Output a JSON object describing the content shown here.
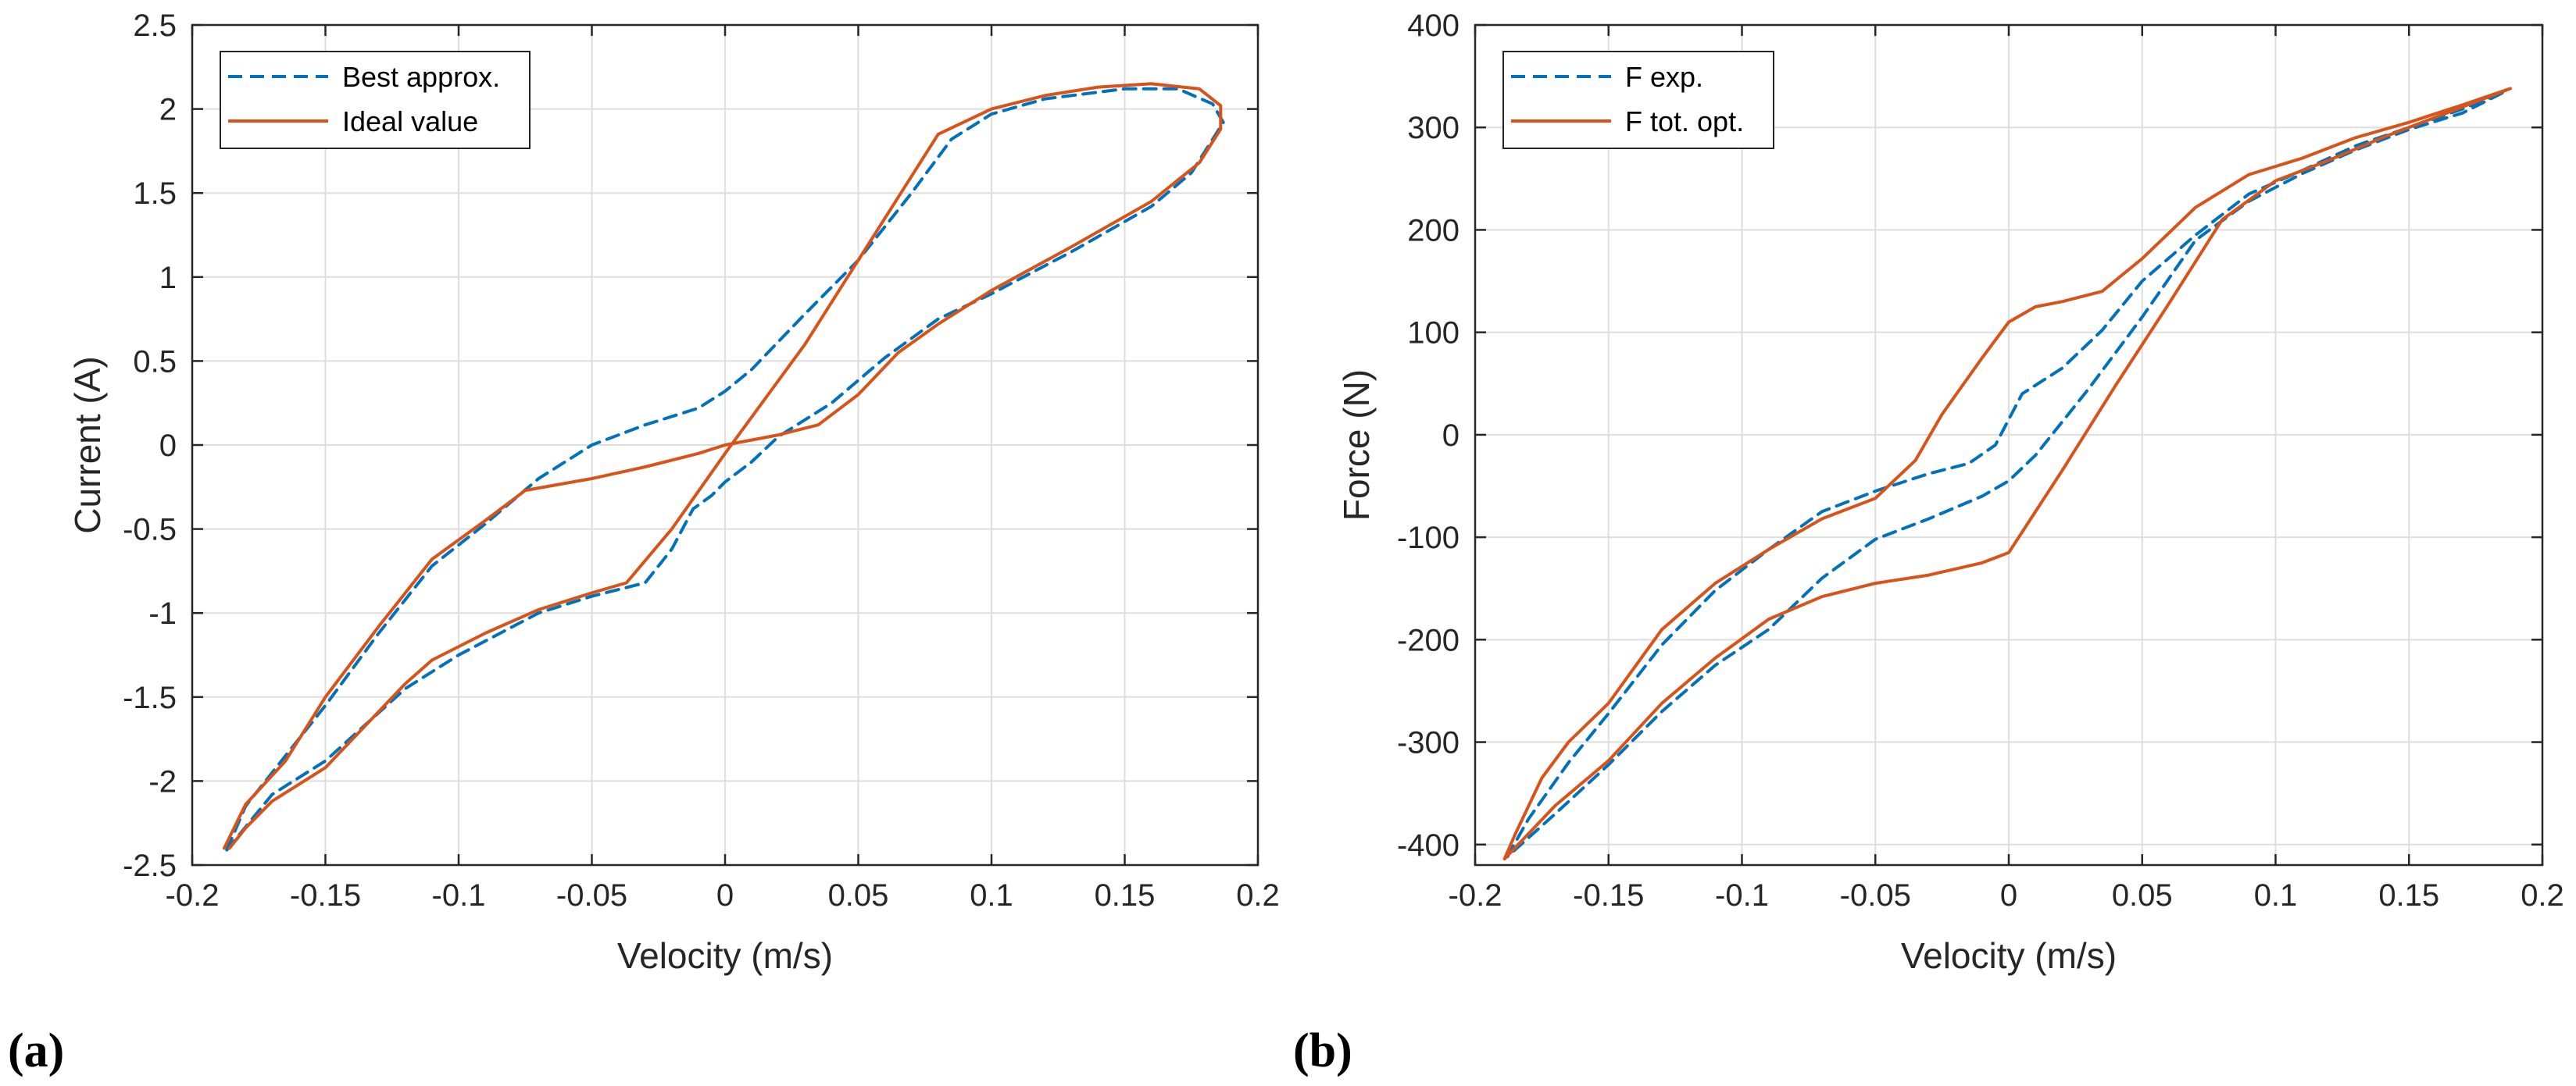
{
  "chart_data": [
    {
      "type": "line",
      "panel": "(a)",
      "xlabel": "Velocity (m/s)",
      "ylabel": "Current (A)",
      "xlim": [
        -0.2,
        0.2
      ],
      "ylim": [
        -2.5,
        2.5
      ],
      "grid": true,
      "legend_position": "top-left",
      "xticks": [
        -0.2,
        -0.15,
        -0.1,
        -0.05,
        0,
        0.05,
        0.1,
        0.15,
        0.2
      ],
      "xtick_labels": [
        "-0.2",
        "-0.15",
        "-0.1",
        "-0.05",
        "0",
        "0.05",
        "0.1",
        "0.15",
        "0.2"
      ],
      "yticks": [
        -2.5,
        -2,
        -1.5,
        -1,
        -0.5,
        0,
        0.5,
        1,
        1.5,
        2,
        2.5
      ],
      "ytick_labels": [
        "-2.5",
        "-2",
        "-1.5",
        "-1",
        "-0.5",
        "0",
        "0.5",
        "1",
        "1.5",
        "2",
        "2.5"
      ],
      "series": [
        {
          "name": "Best approx.",
          "style": "dashed",
          "color": "#0072BD",
          "points": [
            [
              -0.187,
              -2.41
            ],
            [
              -0.18,
              -2.15
            ],
            [
              -0.17,
              -1.95
            ],
            [
              -0.15,
              -1.55
            ],
            [
              -0.13,
              -1.12
            ],
            [
              -0.11,
              -0.72
            ],
            [
              -0.09,
              -0.47
            ],
            [
              -0.07,
              -0.2
            ],
            [
              -0.05,
              0.0
            ],
            [
              -0.03,
              0.12
            ],
            [
              -0.01,
              0.22
            ],
            [
              0.0,
              0.32
            ],
            [
              0.01,
              0.45
            ],
            [
              0.03,
              0.78
            ],
            [
              0.05,
              1.1
            ],
            [
              0.07,
              1.5
            ],
            [
              0.085,
              1.82
            ],
            [
              0.1,
              1.97
            ],
            [
              0.12,
              2.06
            ],
            [
              0.15,
              2.12
            ],
            [
              0.17,
              2.12
            ],
            [
              0.183,
              2.03
            ],
            [
              0.187,
              1.92
            ],
            [
              0.175,
              1.62
            ],
            [
              0.16,
              1.42
            ],
            [
              0.13,
              1.15
            ],
            [
              0.1,
              0.9
            ],
            [
              0.08,
              0.75
            ],
            [
              0.06,
              0.52
            ],
            [
              0.04,
              0.25
            ],
            [
              0.02,
              0.05
            ],
            [
              0.01,
              -0.1
            ],
            [
              0.0,
              -0.22
            ],
            [
              -0.005,
              -0.3
            ],
            [
              -0.012,
              -0.38
            ],
            [
              -0.02,
              -0.62
            ],
            [
              -0.03,
              -0.82
            ],
            [
              -0.05,
              -0.9
            ],
            [
              -0.07,
              -1.0
            ],
            [
              -0.1,
              -1.25
            ],
            [
              -0.12,
              -1.45
            ],
            [
              -0.15,
              -1.88
            ],
            [
              -0.17,
              -2.08
            ],
            [
              -0.187,
              -2.41
            ]
          ]
        },
        {
          "name": "Ideal value",
          "style": "solid",
          "color": "#D95319",
          "points": [
            [
              -0.188,
              -2.4
            ],
            [
              -0.18,
              -2.14
            ],
            [
              -0.165,
              -1.88
            ],
            [
              -0.15,
              -1.5
            ],
            [
              -0.13,
              -1.08
            ],
            [
              -0.11,
              -0.68
            ],
            [
              -0.09,
              -0.45
            ],
            [
              -0.075,
              -0.27
            ],
            [
              -0.05,
              -0.2
            ],
            [
              -0.03,
              -0.13
            ],
            [
              -0.01,
              -0.05
            ],
            [
              0.0,
              0.0
            ],
            [
              0.02,
              0.06
            ],
            [
              0.035,
              0.12
            ],
            [
              0.05,
              0.3
            ],
            [
              0.065,
              0.55
            ],
            [
              0.08,
              0.72
            ],
            [
              0.1,
              0.92
            ],
            [
              0.13,
              1.18
            ],
            [
              0.16,
              1.45
            ],
            [
              0.178,
              1.68
            ],
            [
              0.186,
              1.88
            ],
            [
              0.186,
              2.02
            ],
            [
              0.178,
              2.12
            ],
            [
              0.16,
              2.15
            ],
            [
              0.14,
              2.13
            ],
            [
              0.12,
              2.08
            ],
            [
              0.1,
              2.0
            ],
            [
              0.08,
              1.85
            ],
            [
              0.06,
              1.35
            ],
            [
              0.03,
              0.6
            ],
            [
              0.0,
              -0.05
            ],
            [
              -0.02,
              -0.5
            ],
            [
              -0.037,
              -0.82
            ],
            [
              -0.05,
              -0.88
            ],
            [
              -0.07,
              -0.98
            ],
            [
              -0.09,
              -1.12
            ],
            [
              -0.11,
              -1.28
            ],
            [
              -0.12,
              -1.42
            ],
            [
              -0.15,
              -1.92
            ],
            [
              -0.17,
              -2.12
            ],
            [
              -0.18,
              -2.28
            ],
            [
              -0.186,
              -2.4
            ]
          ]
        }
      ]
    },
    {
      "type": "line",
      "panel": "(b)",
      "xlabel": "Velocity (m/s)",
      "ylabel": "Force (N)",
      "xlim": [
        -0.2,
        0.2
      ],
      "ylim": [
        -420,
        400
      ],
      "grid": true,
      "legend_position": "top-left",
      "xticks": [
        -0.2,
        -0.15,
        -0.1,
        -0.05,
        0,
        0.05,
        0.1,
        0.15,
        0.2
      ],
      "xtick_labels": [
        "-0.2",
        "-0.15",
        "-0.1",
        "-0.05",
        "0",
        "0.05",
        "0.1",
        "0.15",
        "0.2"
      ],
      "yticks": [
        -400,
        -300,
        -200,
        -100,
        0,
        100,
        200,
        300,
        400
      ],
      "ytick_labels": [
        "-400",
        "-300",
        "-200",
        "-100",
        "0",
        "100",
        "200",
        "300",
        "400"
      ],
      "series": [
        {
          "name": "F exp.",
          "style": "dashed",
          "color": "#0072BD",
          "points": [
            [
              -0.188,
              -412
            ],
            [
              -0.18,
              -375
            ],
            [
              -0.165,
              -320
            ],
            [
              -0.15,
              -272
            ],
            [
              -0.13,
              -205
            ],
            [
              -0.11,
              -152
            ],
            [
              -0.09,
              -112
            ],
            [
              -0.07,
              -75
            ],
            [
              -0.05,
              -55
            ],
            [
              -0.03,
              -38
            ],
            [
              -0.015,
              -28
            ],
            [
              -0.005,
              -10
            ],
            [
              0.0,
              15
            ],
            [
              0.005,
              40
            ],
            [
              0.02,
              65
            ],
            [
              0.035,
              102
            ],
            [
              0.05,
              150
            ],
            [
              0.07,
              195
            ],
            [
              0.09,
              235
            ],
            [
              0.11,
              258
            ],
            [
              0.13,
              282
            ],
            [
              0.15,
              300
            ],
            [
              0.17,
              318
            ],
            [
              0.186,
              335
            ],
            [
              0.17,
              314
            ],
            [
              0.15,
              298
            ],
            [
              0.13,
              278
            ],
            [
              0.11,
              255
            ],
            [
              0.09,
              228
            ],
            [
              0.07,
              190
            ],
            [
              0.05,
              115
            ],
            [
              0.03,
              45
            ],
            [
              0.01,
              -20
            ],
            [
              0.0,
              -45
            ],
            [
              -0.01,
              -60
            ],
            [
              -0.03,
              -82
            ],
            [
              -0.05,
              -102
            ],
            [
              -0.07,
              -140
            ],
            [
              -0.09,
              -190
            ],
            [
              -0.11,
              -225
            ],
            [
              -0.13,
              -270
            ],
            [
              -0.15,
              -322
            ],
            [
              -0.17,
              -370
            ],
            [
              -0.188,
              -412
            ]
          ]
        },
        {
          "name": "F tot. opt.",
          "style": "solid",
          "color": "#D95319",
          "points": [
            [
              -0.189,
              -414
            ],
            [
              -0.185,
              -390
            ],
            [
              -0.175,
              -335
            ],
            [
              -0.165,
              -300
            ],
            [
              -0.15,
              -262
            ],
            [
              -0.13,
              -190
            ],
            [
              -0.11,
              -145
            ],
            [
              -0.09,
              -112
            ],
            [
              -0.07,
              -82
            ],
            [
              -0.05,
              -62
            ],
            [
              -0.035,
              -25
            ],
            [
              -0.025,
              20
            ],
            [
              -0.01,
              75
            ],
            [
              0.0,
              110
            ],
            [
              0.01,
              125
            ],
            [
              0.02,
              130
            ],
            [
              0.035,
              140
            ],
            [
              0.05,
              172
            ],
            [
              0.07,
              222
            ],
            [
              0.09,
              254
            ],
            [
              0.11,
              270
            ],
            [
              0.13,
              290
            ],
            [
              0.15,
              305
            ],
            [
              0.17,
              322
            ],
            [
              0.188,
              338
            ],
            [
              0.18,
              330
            ],
            [
              0.16,
              310
            ],
            [
              0.14,
              290
            ],
            [
              0.12,
              268
            ],
            [
              0.1,
              248
            ],
            [
              0.08,
              210
            ],
            [
              0.06,
              128
            ],
            [
              0.04,
              48
            ],
            [
              0.02,
              -35
            ],
            [
              0.005,
              -95
            ],
            [
              0.0,
              -115
            ],
            [
              -0.01,
              -125
            ],
            [
              -0.03,
              -137
            ],
            [
              -0.05,
              -145
            ],
            [
              -0.07,
              -158
            ],
            [
              -0.09,
              -180
            ],
            [
              -0.11,
              -218
            ],
            [
              -0.13,
              -262
            ],
            [
              -0.15,
              -318
            ],
            [
              -0.17,
              -362
            ],
            [
              -0.189,
              -414
            ]
          ]
        }
      ]
    }
  ]
}
